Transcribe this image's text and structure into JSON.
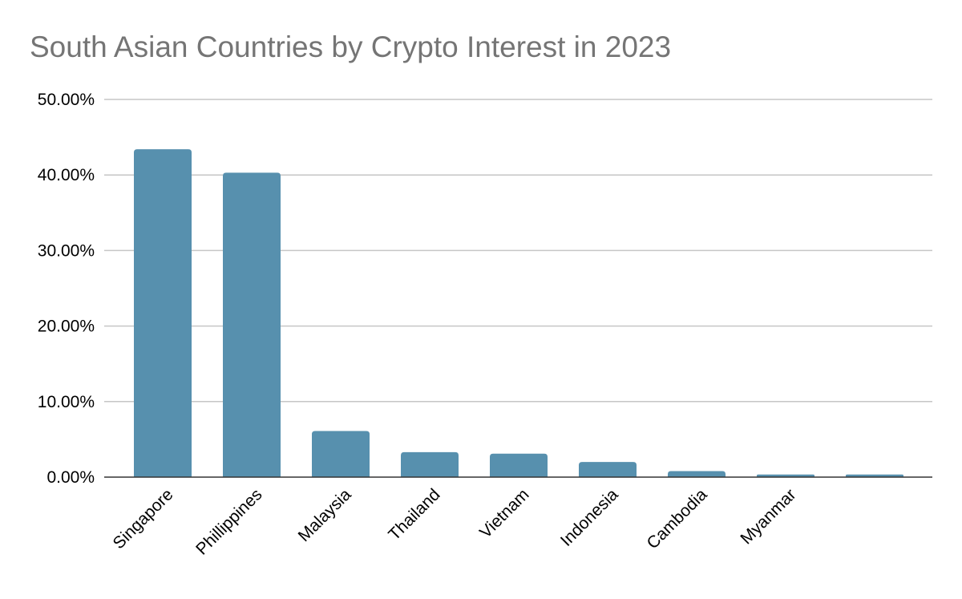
{
  "chart_data": {
    "type": "bar",
    "title": "South Asian Countries by Crypto Interest in 2023",
    "xlabel": "",
    "ylabel": "",
    "categories": [
      "Singapore",
      "Phillippines",
      "Malaysia",
      "Thailand",
      "Vietnam",
      "Indonesia",
      "Cambodia",
      "Myanmar",
      ""
    ],
    "values": [
      43.4,
      40.3,
      6.1,
      3.3,
      3.1,
      2.0,
      0.8,
      0.35,
      0.35
    ],
    "ylim": [
      0,
      50
    ],
    "yticks": [
      "0.00%",
      "10.00%",
      "20.00%",
      "30.00%",
      "40.00%",
      "50.00%"
    ],
    "grid": true,
    "legend": "none",
    "colors": {
      "bar": "#5790ae",
      "grid": "#c6c6c6",
      "axis": "#333333",
      "title": "#757575",
      "text": "#000000"
    }
  }
}
